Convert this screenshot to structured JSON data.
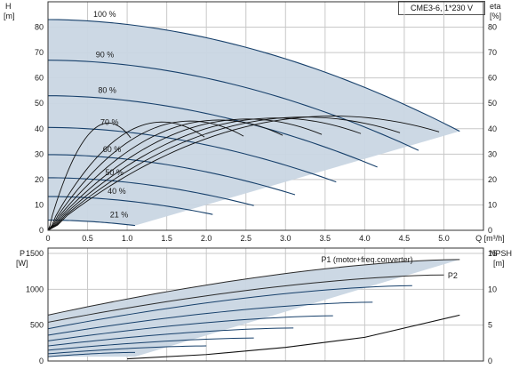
{
  "chart_data": [
    {
      "type": "line",
      "title": "CME3-6, 1*230 V",
      "ylabel": "H",
      "yunit": "[m]",
      "y2label": "eta",
      "y2unit": "[%]",
      "xlabel": "Q",
      "xunit": "[m³/h]",
      "xlim": [
        0,
        5.5
      ],
      "ylim": [
        0,
        90
      ],
      "y2lim": [
        0,
        90
      ],
      "xticks": [
        "0",
        "0.5",
        "1.0",
        "1.5",
        "2.0",
        "2.5",
        "3.0",
        "3.5",
        "4.0",
        "4.5",
        "5.0"
      ],
      "xtick_values": [
        0,
        0.5,
        1.0,
        1.5,
        2.0,
        2.5,
        3.0,
        3.5,
        4.0,
        4.5,
        5.0
      ],
      "yticks": [
        0,
        10,
        20,
        30,
        40,
        50,
        60,
        70,
        80
      ],
      "grid": true,
      "colors": {
        "curve": "#17406b",
        "fill": "#c9d6e3",
        "grid": "#c8c8c8"
      },
      "speed_curves": [
        {
          "label": "100 %",
          "shutoff_head": 83,
          "qmax": 5.2
        },
        {
          "label": "90 %",
          "shutoff_head": 67,
          "qmax": 4.68
        },
        {
          "label": "80 %",
          "shutoff_head": 53,
          "qmax": 4.16
        },
        {
          "label": "70 %",
          "shutoff_head": 40.5,
          "qmax": 3.64
        },
        {
          "label": "60 %",
          "shutoff_head": 29.8,
          "qmax": 3.12
        },
        {
          "label": "50 %",
          "shutoff_head": 20.7,
          "qmax": 2.6
        },
        {
          "label": "40 %",
          "shutoff_head": 13.3,
          "qmax": 2.08
        },
        {
          "label": "21 %",
          "shutoff_head": 4,
          "qmax": 1.1
        }
      ],
      "efficiency_peak": {
        "q": 3.6,
        "eta": 45
      }
    },
    {
      "type": "line",
      "ylabel": "P",
      "yunit": "[W]",
      "y2label": "NPSH",
      "y2unit": "[m]",
      "xlim": [
        0,
        5.5
      ],
      "ylim": [
        0,
        1500
      ],
      "y2lim": [
        0,
        15
      ],
      "yticks": [
        0,
        500,
        1000,
        1500
      ],
      "y2ticks": [
        0,
        5,
        10,
        15
      ],
      "series": [
        {
          "name": "P1 (motor+freq.converter)",
          "p0": 640,
          "pmax": 1415
        },
        {
          "name": "P2",
          "p0": 540,
          "pmax": 1200
        }
      ],
      "npsh": {
        "q": [
          1.0,
          2.0,
          3.0,
          4.0,
          5.2
        ],
        "values": [
          0.3,
          0.9,
          1.9,
          3.3,
          6.4
        ]
      }
    }
  ]
}
